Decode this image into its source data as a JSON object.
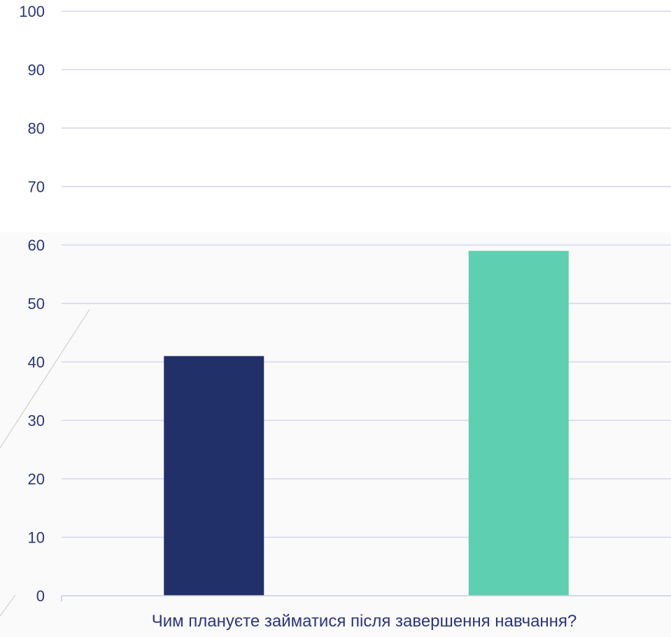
{
  "chart_data": {
    "type": "bar",
    "categories": [
      "Чим плануєте займатися після завершення навчання?"
    ],
    "series": [
      {
        "values": [
          41
        ]
      },
      {
        "values": [
          59
        ]
      }
    ],
    "ylim": [
      0,
      100
    ],
    "yticks": [
      0,
      10,
      20,
      30,
      40,
      50,
      60,
      70,
      80,
      90,
      100
    ],
    "grid": true,
    "legend": "none",
    "colors": {
      "series": [
        "#22306a",
        "#5ecfb1"
      ],
      "grid": "#d3d6ec",
      "axis": "#c8cbe0",
      "text": "#2b3580",
      "background_lower": "#fafafa",
      "decor_line": "#c8c8c8"
    }
  }
}
